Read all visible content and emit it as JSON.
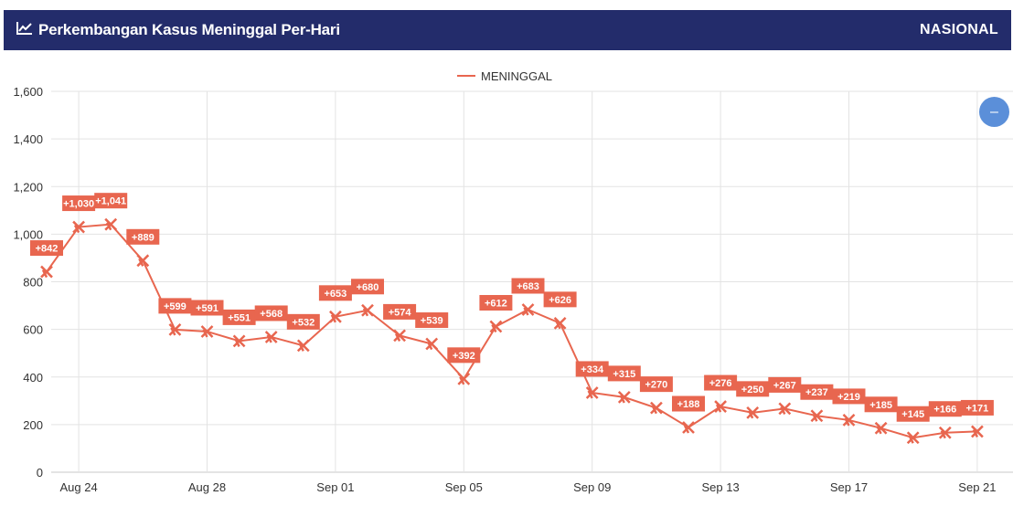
{
  "header": {
    "title": "Perkembangan Kasus Meninggal Per-Hari",
    "icon": "line-chart-icon",
    "badge": "NASIONAL",
    "background": "#232c6b"
  },
  "zoom_button": {
    "icon": "zoom-out-icon",
    "label": "–"
  },
  "chart_data": {
    "type": "line",
    "title": "",
    "xlabel": "",
    "ylabel": "",
    "ylim": [
      0,
      1600
    ],
    "yticks": [
      0,
      200,
      400,
      600,
      800,
      1000,
      1200,
      1400,
      1600
    ],
    "ytick_labels": [
      "0",
      "200",
      "400",
      "600",
      "800",
      "1,000",
      "1,200",
      "1,400",
      "1,600"
    ],
    "grid": true,
    "legend_position": "top-center",
    "x_dates": [
      "Aug 23",
      "Aug 24",
      "Aug 25",
      "Aug 26",
      "Aug 27",
      "Aug 28",
      "Aug 29",
      "Aug 30",
      "Aug 31",
      "Sep 01",
      "Sep 02",
      "Sep 03",
      "Sep 04",
      "Sep 05",
      "Sep 06",
      "Sep 07",
      "Sep 08",
      "Sep 09",
      "Sep 10",
      "Sep 11",
      "Sep 12",
      "Sep 13",
      "Sep 14",
      "Sep 15",
      "Sep 16",
      "Sep 17",
      "Sep 18",
      "Sep 19",
      "Sep 20",
      "Sep 21"
    ],
    "xtick_labels": [
      "Aug 24",
      "Aug 28",
      "Sep 01",
      "Sep 05",
      "Sep 09",
      "Sep 13",
      "Sep 17",
      "Sep 21"
    ],
    "series": [
      {
        "name": "MENINGGAL",
        "color": "#e8664f",
        "values": [
          842,
          1030,
          1041,
          889,
          599,
          591,
          551,
          568,
          532,
          653,
          680,
          574,
          539,
          392,
          612,
          683,
          626,
          334,
          315,
          270,
          188,
          276,
          250,
          267,
          237,
          219,
          185,
          145,
          166,
          171
        ],
        "data_labels": [
          "+842",
          "+1,030",
          "+1,041",
          "+889",
          "+599",
          "+591",
          "+551",
          "+568",
          "+532",
          "+653",
          "+680",
          "+574",
          "+539",
          "+392",
          "+612",
          "+683",
          "+626",
          "+334",
          "+315",
          "+270",
          "+188",
          "+276",
          "+250",
          "+267",
          "+237",
          "+219",
          "+185",
          "+145",
          "+166",
          "+171"
        ]
      }
    ]
  }
}
